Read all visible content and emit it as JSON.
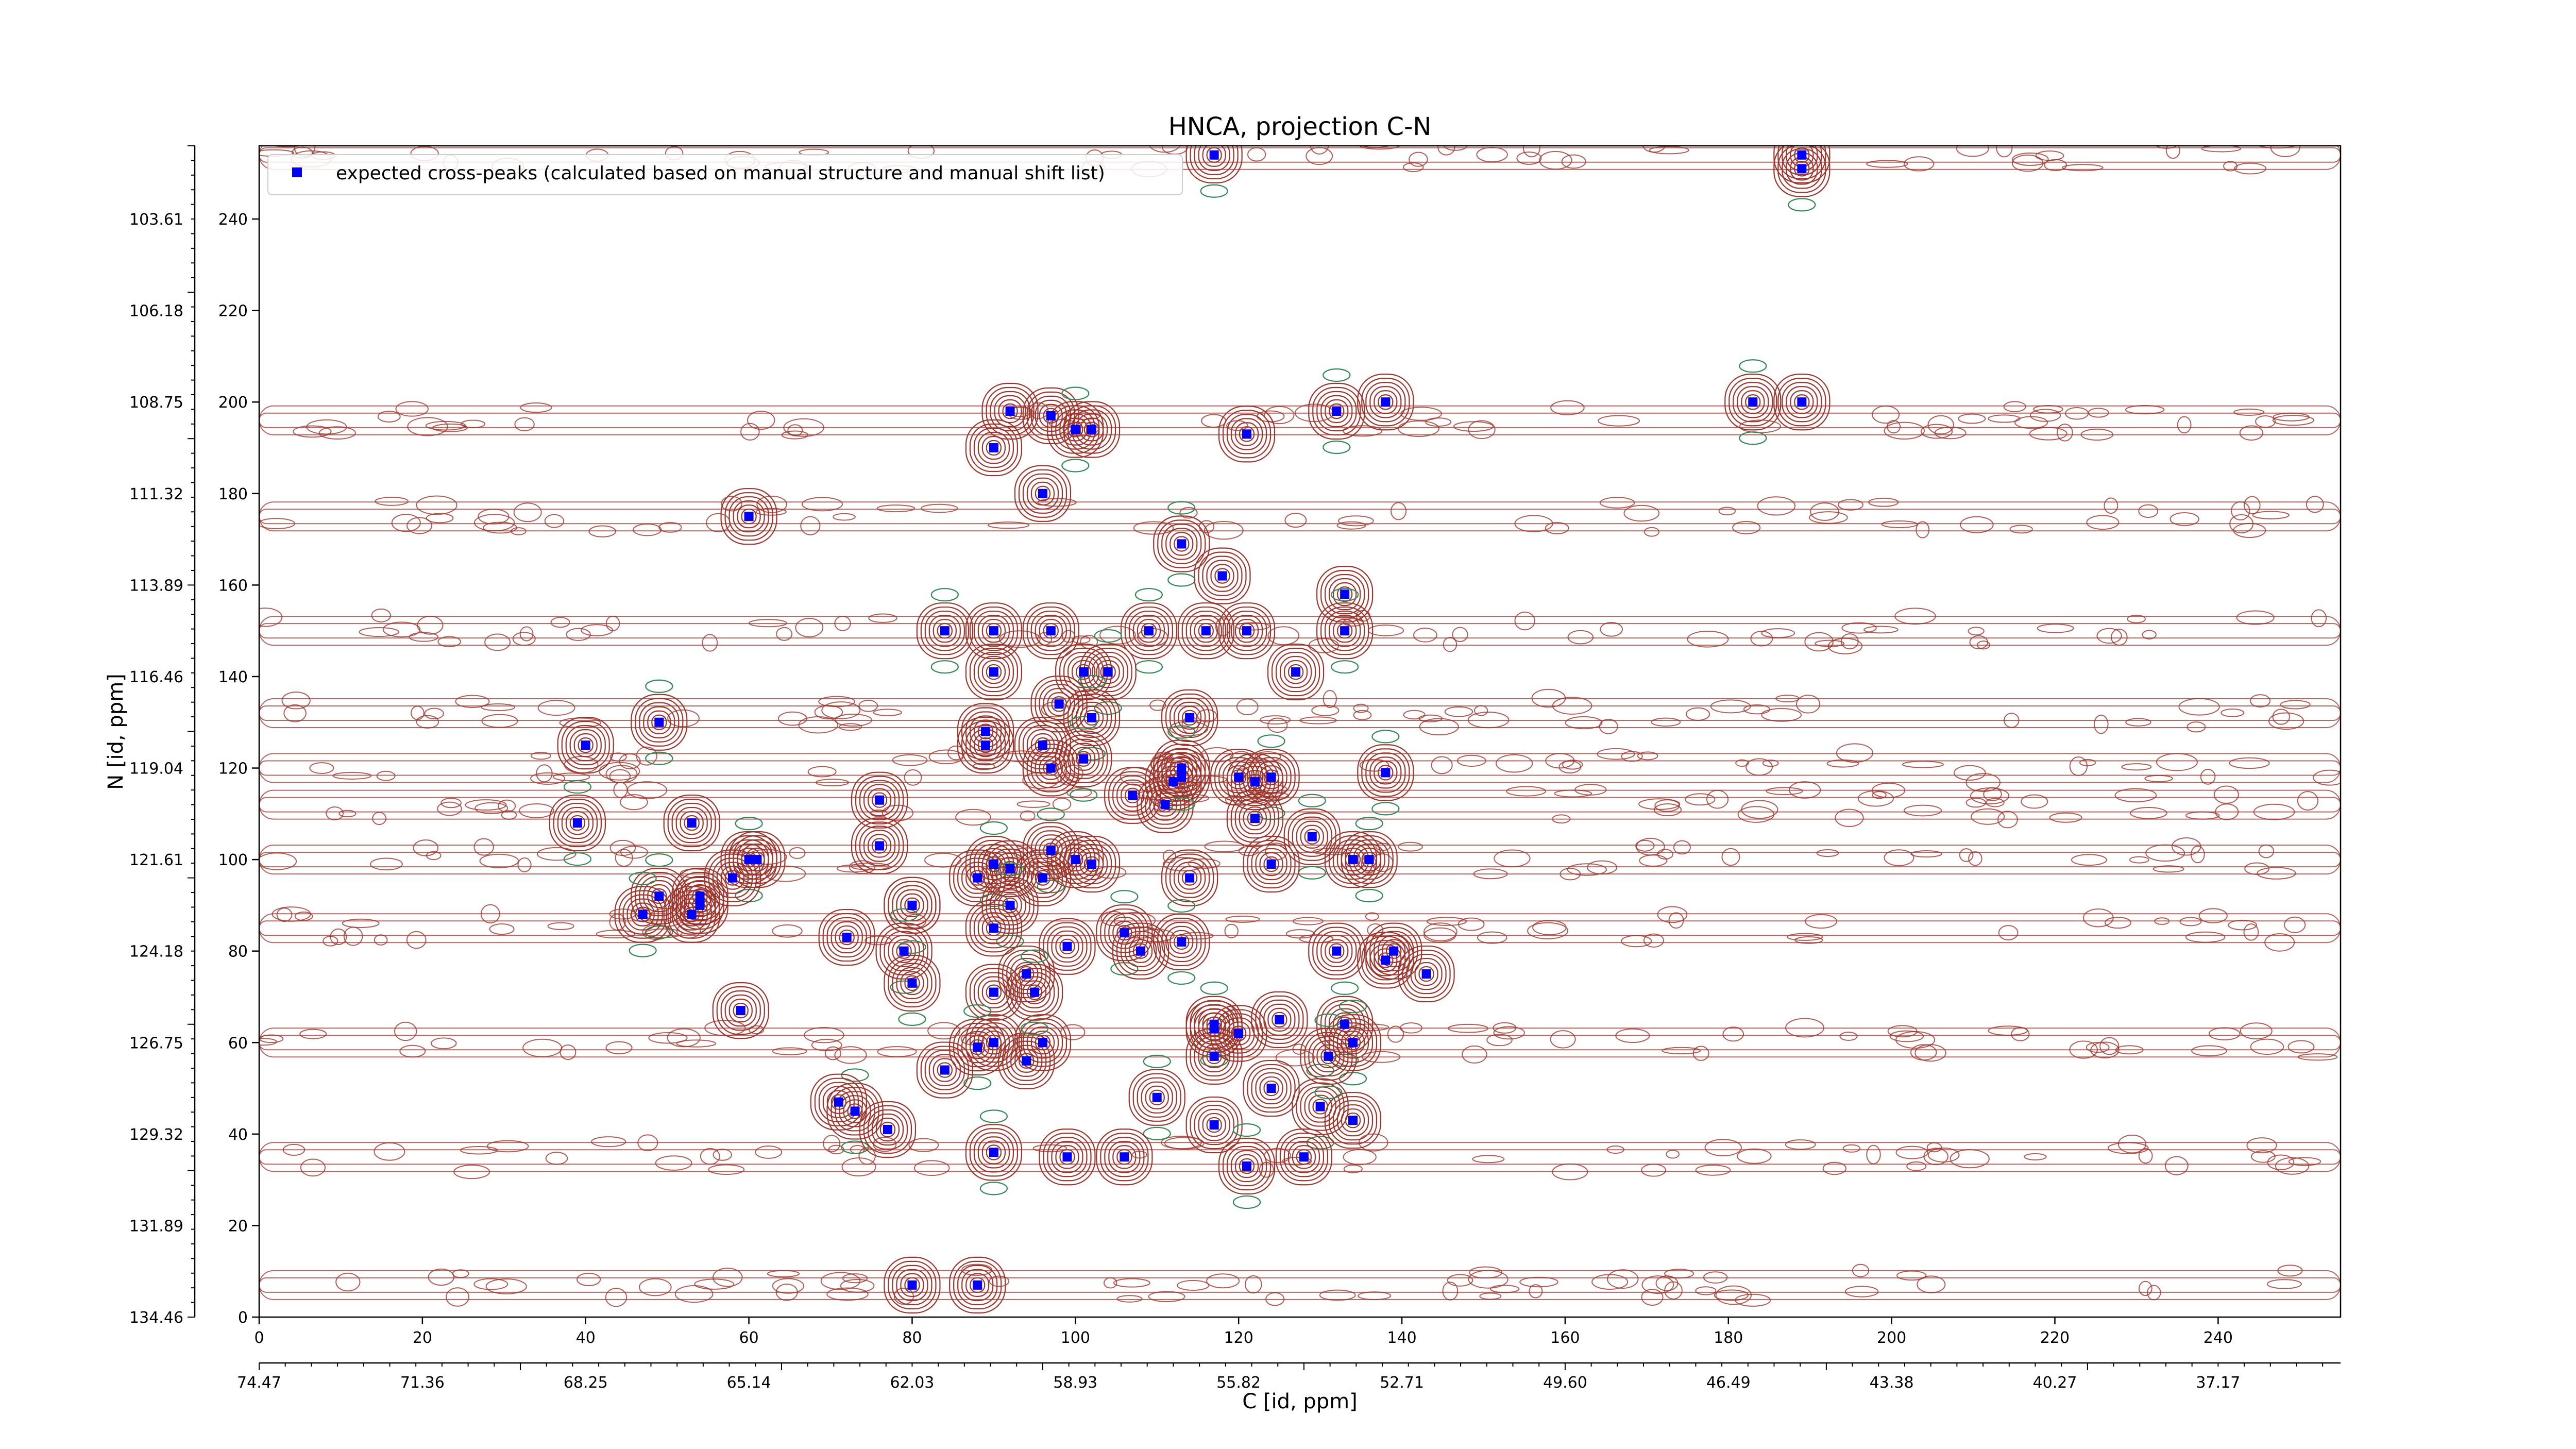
{
  "chart_data": {
    "type": "scatter",
    "title": "HNCA, projection C-N",
    "xlabel": "C [id, ppm]",
    "ylabel": "N [id, ppm]",
    "xlim": [
      0,
      255
    ],
    "ylim": [
      0,
      256
    ],
    "x_ticks": [
      "0",
      "20",
      "40",
      "60",
      "80",
      "100",
      "120",
      "140",
      "160",
      "180",
      "200",
      "220",
      "240"
    ],
    "x_ppm_ticks": [
      "74.47",
      "71.36",
      "68.25",
      "65.14",
      "62.03",
      "58.93",
      "55.82",
      "52.71",
      "49.60",
      "46.49",
      "43.38",
      "40.27",
      "37.17"
    ],
    "y_ticks": [
      "0",
      "20",
      "40",
      "60",
      "80",
      "100",
      "120",
      "140",
      "160",
      "180",
      "200",
      "220",
      "240"
    ],
    "y_ppm_ticks": [
      "134.46",
      "131.89",
      "129.32",
      "126.75",
      "124.18",
      "121.61",
      "119.04",
      "116.46",
      "113.89",
      "111.32",
      "108.75",
      "106.18",
      "103.61"
    ],
    "grid": false,
    "legend_position": "top-left",
    "colors": {
      "positive_contour": "#a0342a",
      "negative_contour": "#2e8b57",
      "marker": "#0000ff"
    },
    "series": [
      {
        "name": "expected cross-peaks (calculated based on manual structure and manual shift list)",
        "x": [
          117,
          189,
          138,
          132,
          92,
          97,
          100,
          102,
          121,
          183,
          90,
          189,
          189,
          96,
          60,
          113,
          118,
          133,
          84,
          90,
          97,
          109,
          116,
          121,
          133,
          90,
          101,
          104,
          127,
          98,
          102,
          114,
          40,
          49,
          89,
          96,
          101,
          97,
          113,
          138,
          120,
          112,
          124,
          76,
          107,
          39,
          53,
          111,
          113,
          122,
          61,
          97,
          100,
          102,
          60,
          76,
          114,
          129,
          124,
          134,
          136,
          58,
          88,
          90,
          92,
          96,
          49,
          54,
          80,
          92,
          72,
          80,
          106,
          99,
          108,
          47,
          54,
          90,
          113,
          132,
          138,
          79,
          143,
          90,
          80,
          94,
          117,
          117,
          120,
          125,
          133,
          90,
          96,
          88,
          59,
          94,
          110,
          117,
          124,
          130,
          134,
          84,
          73,
          71,
          77,
          90,
          99,
          106,
          121,
          128,
          117,
          134,
          80,
          88,
          95,
          139,
          122,
          131,
          89,
          53
        ],
        "y": [
          254,
          254,
          200,
          198,
          198,
          197,
          194,
          194,
          193,
          200,
          190,
          200,
          251,
          180,
          175,
          169,
          162,
          158,
          150,
          150,
          150,
          150,
          150,
          150,
          150,
          141,
          141,
          141,
          141,
          134,
          131,
          131,
          125,
          130,
          125,
          125,
          122,
          120,
          118,
          119,
          118,
          117,
          118,
          113,
          114,
          108,
          108,
          112,
          120,
          117,
          100,
          102,
          100,
          99,
          100,
          103,
          96,
          105,
          99,
          100,
          100,
          96,
          96,
          99,
          98,
          96,
          92,
          90,
          90,
          90,
          83,
          90,
          84,
          81,
          80,
          88,
          92,
          85,
          82,
          80,
          78,
          80,
          75,
          71,
          73,
          75,
          63,
          64,
          62,
          65,
          64,
          60,
          60,
          59,
          67,
          56,
          48,
          42,
          50,
          46,
          43,
          54,
          45,
          47,
          41,
          36,
          35,
          35,
          33,
          35,
          57,
          60,
          7,
          7,
          71,
          80,
          109,
          57,
          128,
          88
        ]
      }
    ]
  }
}
